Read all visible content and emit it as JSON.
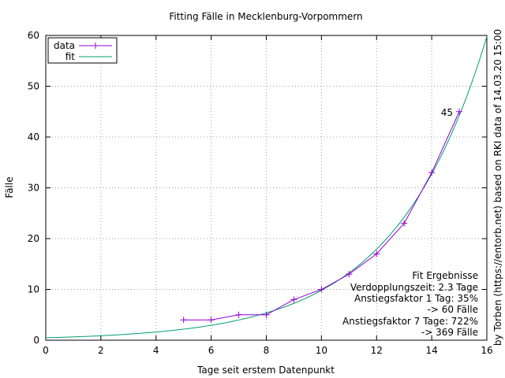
{
  "chart_data": {
    "type": "line",
    "title": "Fitting Fälle in Mecklenburg-Vorpommern",
    "xlabel": "Tage seit erstem Datenpunkt",
    "ylabel": "Fälle",
    "xlim": [
      0,
      16
    ],
    "ylim": [
      0,
      60
    ],
    "xticks": [
      "0",
      "2",
      "4",
      "6",
      "8",
      "10",
      "12",
      "14",
      "16"
    ],
    "yticks": [
      "0",
      "10",
      "20",
      "30",
      "40",
      "50",
      "60"
    ],
    "grid": true,
    "legend_position": "top-left",
    "series": [
      {
        "name": "data",
        "color": "#9400d3",
        "x": [
          5,
          6,
          7,
          8,
          9,
          10,
          11,
          12,
          13,
          14,
          15
        ],
        "y": [
          4,
          4,
          5,
          5,
          8,
          10,
          13,
          17,
          23,
          33,
          45
        ]
      },
      {
        "name": "fit",
        "color": "#009e73",
        "function": "a*exp(b*x)",
        "a": 0.482,
        "b": 0.3013
      }
    ],
    "annotations": {
      "last_point_label": "45",
      "fit_results": [
        "Fit Ergebnisse",
        "Verdopplungszeit: 2.3 Tage",
        "Anstiegsfaktor 1 Tag: 35%",
        "-> 60 Fälle",
        "Anstiegsfaktor 7 Tage: 722%",
        "-> 369 Fälle"
      ],
      "credit": "by Torben (https://entorb.net) based on RKI data of 14.03.20 15:00"
    }
  }
}
